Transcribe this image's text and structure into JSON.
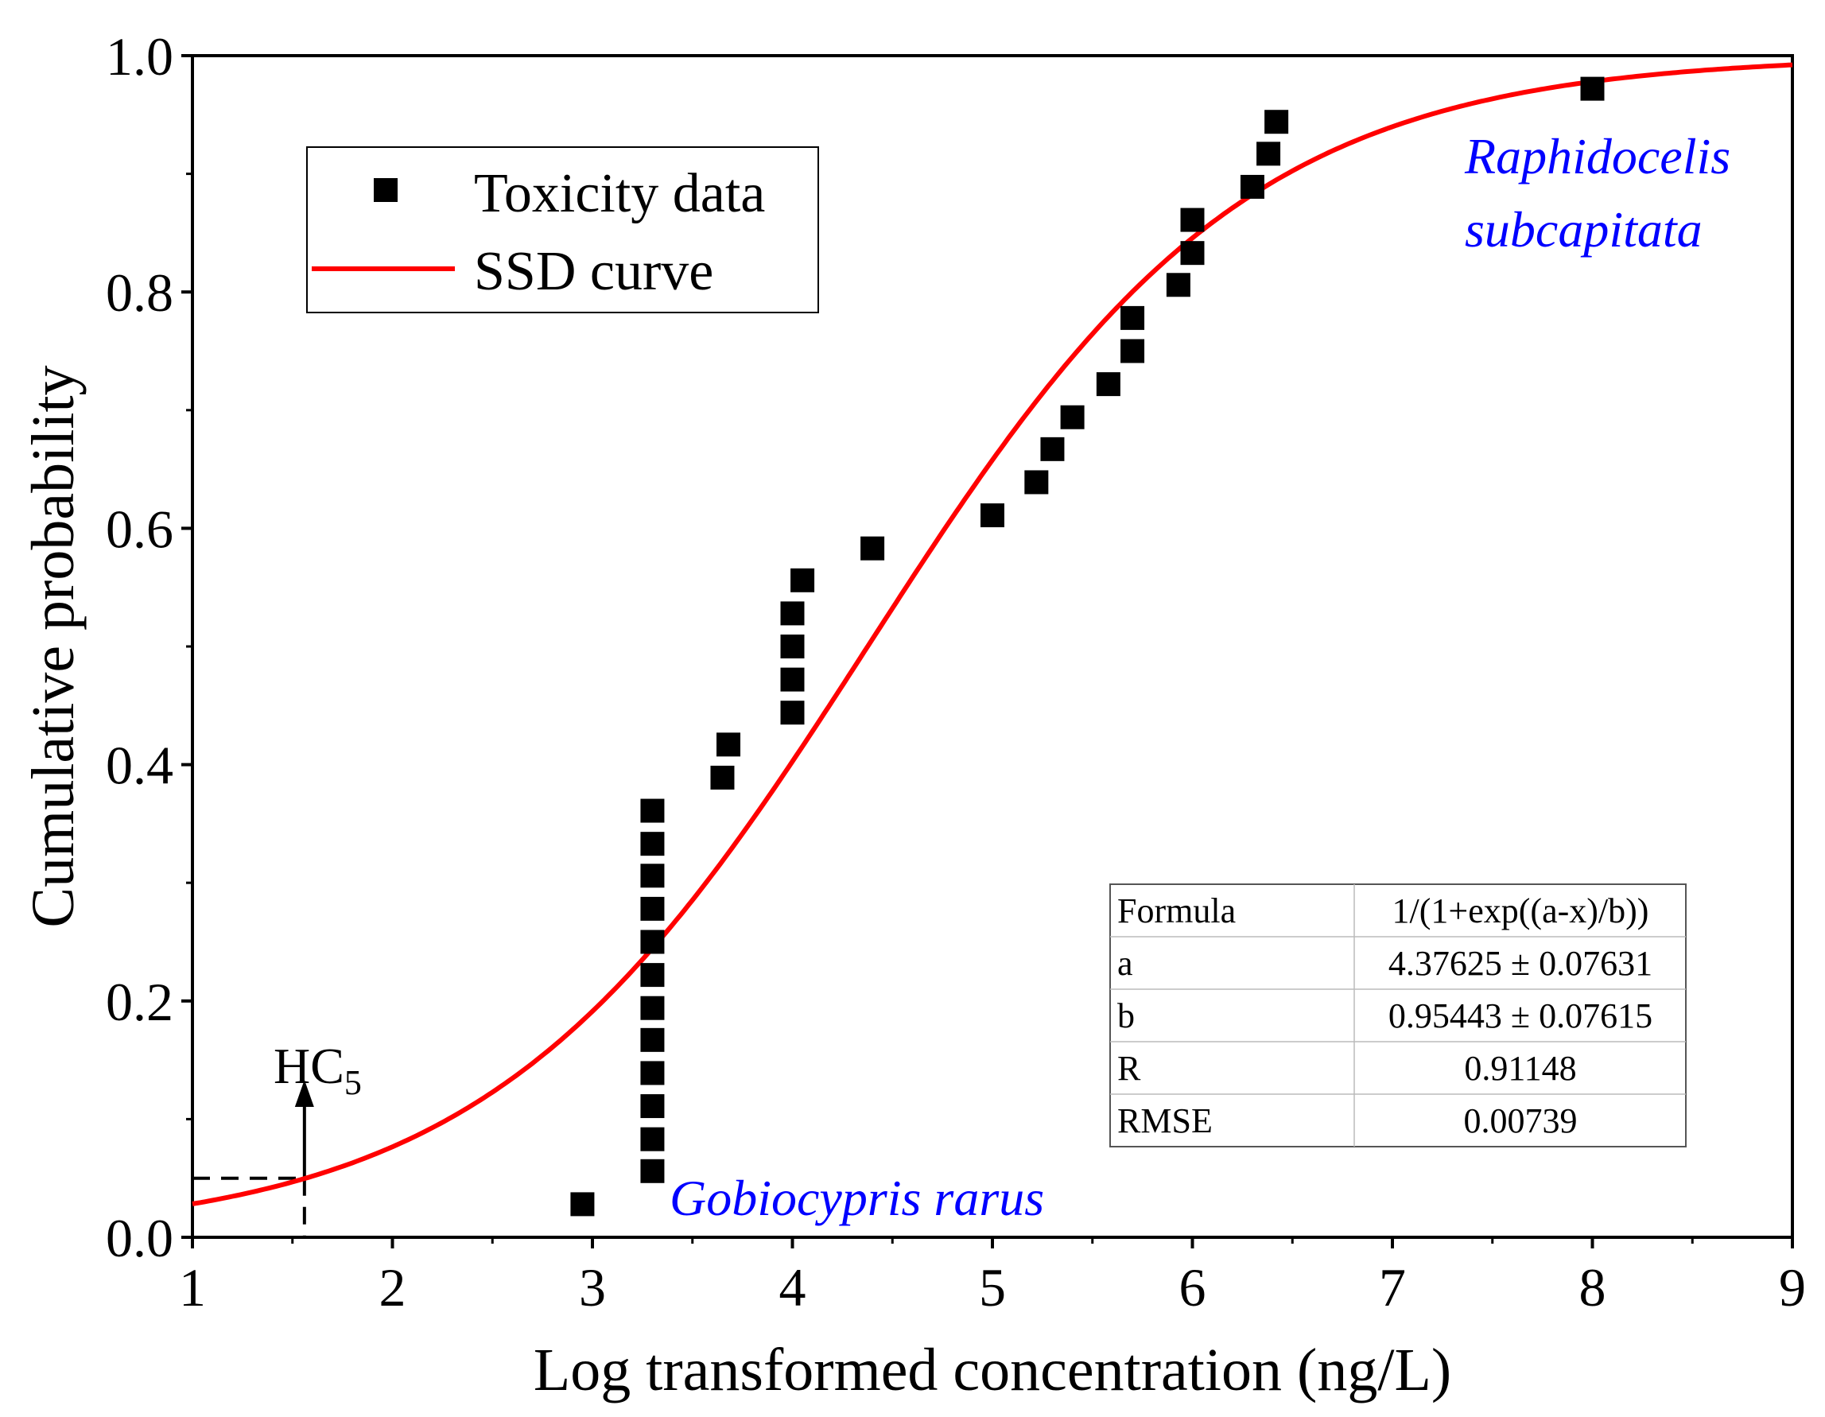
{
  "chart_data": {
    "type": "scatter",
    "title": "",
    "xlabel": "Log transformed concentration (ng/L)",
    "ylabel": "Cumulative probability",
    "xlim": [
      1,
      9
    ],
    "ylim": [
      0.0,
      1.0
    ],
    "x_ticks": [
      "1",
      "2",
      "3",
      "4",
      "5",
      "6",
      "7",
      "8",
      "9"
    ],
    "y_ticks": [
      "0.0",
      "0.2",
      "0.4",
      "0.6",
      "0.8",
      "1.0"
    ],
    "legend": {
      "position": "top-left",
      "entries": [
        "Toxicity data",
        "SSD curve"
      ]
    },
    "colors": {
      "points": "#000000",
      "curve": "#ff0000",
      "species_label": "#0000ff",
      "axes": "#000000"
    },
    "series": [
      {
        "name": "Toxicity data",
        "kind": "scatter",
        "marker": "square",
        "points": [
          [
            2.95,
            0.028
          ],
          [
            3.3,
            0.056
          ],
          [
            3.3,
            0.083
          ],
          [
            3.3,
            0.111
          ],
          [
            3.3,
            0.139
          ],
          [
            3.3,
            0.167
          ],
          [
            3.3,
            0.194
          ],
          [
            3.3,
            0.222
          ],
          [
            3.3,
            0.25
          ],
          [
            3.3,
            0.278
          ],
          [
            3.3,
            0.306
          ],
          [
            3.3,
            0.333
          ],
          [
            3.3,
            0.361
          ],
          [
            3.65,
            0.389
          ],
          [
            3.68,
            0.417
          ],
          [
            4.0,
            0.444
          ],
          [
            4.0,
            0.472
          ],
          [
            4.0,
            0.5
          ],
          [
            4.0,
            0.528
          ],
          [
            4.05,
            0.556
          ],
          [
            4.4,
            0.583
          ],
          [
            5.0,
            0.611
          ],
          [
            5.22,
            0.639
          ],
          [
            5.3,
            0.667
          ],
          [
            5.4,
            0.694
          ],
          [
            5.58,
            0.722
          ],
          [
            5.7,
            0.75
          ],
          [
            5.7,
            0.778
          ],
          [
            5.93,
            0.806
          ],
          [
            6.0,
            0.833
          ],
          [
            6.0,
            0.861
          ],
          [
            6.3,
            0.889
          ],
          [
            6.38,
            0.917
          ],
          [
            6.42,
            0.944
          ],
          [
            8.0,
            0.972
          ]
        ]
      },
      {
        "name": "SSD curve",
        "kind": "line",
        "formula": "1/(1+exp((a-x)/b))",
        "a": 4.37625,
        "b": 0.95443
      }
    ],
    "annotations": {
      "hc5_label": "HC",
      "hc5_subscript": "5",
      "hc5_x": 1.56,
      "hc5_y": 0.05,
      "species_low": "Gobiocypris rarus",
      "species_high_line1": "Raphidocelis",
      "species_high_line2": "subcapitata"
    },
    "fit_table": {
      "rows": [
        {
          "label": "Formula",
          "value": "1/(1+exp((a-x)/b))"
        },
        {
          "label": "a",
          "value": "4.37625 ± 0.07631"
        },
        {
          "label": "b",
          "value": "0.95443 ± 0.07615"
        },
        {
          "label": "R",
          "value": "0.91148"
        },
        {
          "label": "RMSE",
          "value": "0.00739"
        }
      ]
    }
  }
}
